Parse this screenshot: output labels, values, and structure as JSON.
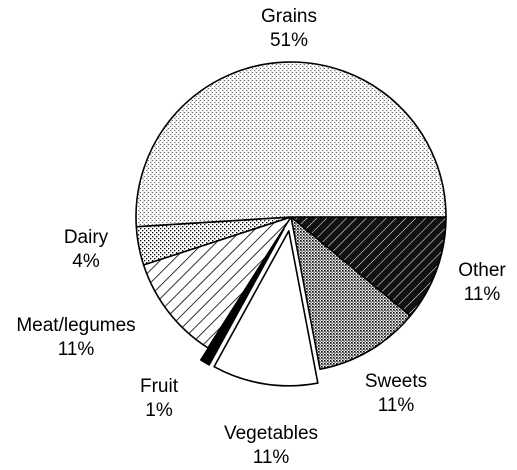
{
  "chart_data": {
    "type": "pie",
    "title": "",
    "legend": "none",
    "unit": "%",
    "start_angle_deg": 0,
    "direction": "clockwise",
    "slices": [
      {
        "label": "Other",
        "value": 11,
        "value_label": "11%",
        "pattern": "solid-diagonal",
        "exploded": false
      },
      {
        "label": "Sweets",
        "value": 11,
        "value_label": "11%",
        "pattern": "dense-dots",
        "exploded": false
      },
      {
        "label": "Vegetables",
        "value": 11,
        "value_label": "11%",
        "pattern": "none",
        "exploded": true
      },
      {
        "label": "Fruit",
        "value": 1,
        "value_label": "1%",
        "pattern": "solid",
        "exploded": true
      },
      {
        "label": "Meat/legumes",
        "value": 11,
        "value_label": "11%",
        "pattern": "diagonal-lines",
        "exploded": false
      },
      {
        "label": "Dairy",
        "value": 4,
        "value_label": "4%",
        "pattern": "medium-dots",
        "exploded": false
      },
      {
        "label": "Grains",
        "value": 51,
        "value_label": "51%",
        "pattern": "vertical-dots",
        "exploded": false
      }
    ]
  }
}
